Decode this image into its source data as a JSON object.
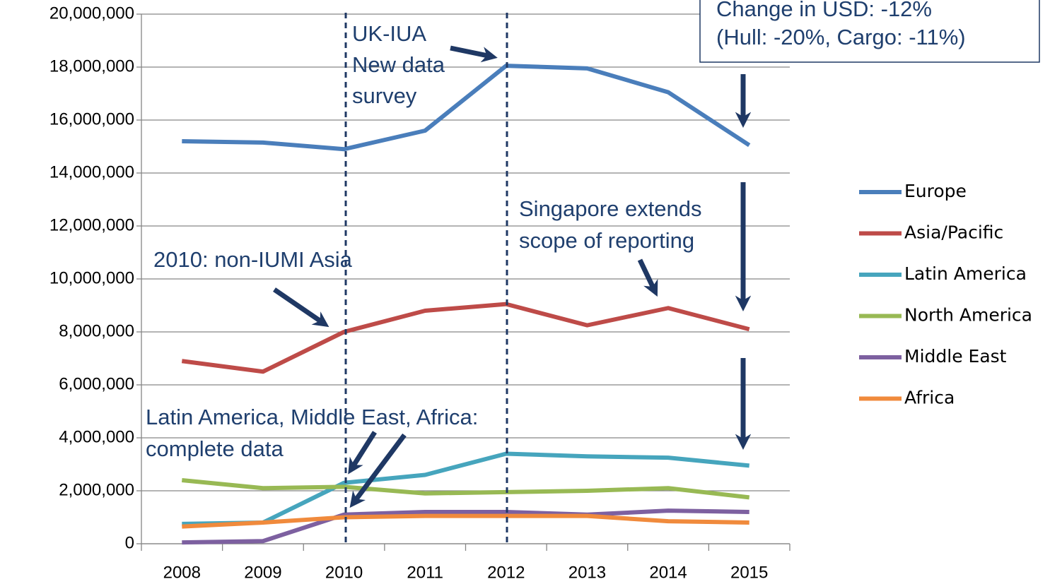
{
  "chart_data": {
    "type": "line",
    "categories": [
      "2008",
      "2009",
      "2010",
      "2011",
      "2012",
      "2013",
      "2014",
      "2015"
    ],
    "series": [
      {
        "name": "Europe",
        "color": "#4a7ebb",
        "values": [
          15200000,
          15150000,
          14900000,
          15600000,
          18050000,
          17950000,
          17050000,
          15050000
        ]
      },
      {
        "name": "Asia/Pacific",
        "color": "#be4b48",
        "values": [
          6900000,
          6500000,
          8000000,
          8800000,
          9050000,
          8250000,
          8900000,
          8100000
        ]
      },
      {
        "name": "Latin America",
        "color": "#46a5bd",
        "values": [
          750000,
          800000,
          2300000,
          2600000,
          3400000,
          3300000,
          3250000,
          2950000
        ]
      },
      {
        "name": "North America",
        "color": "#98b954",
        "values": [
          2400000,
          2100000,
          2150000,
          1900000,
          1950000,
          2000000,
          2100000,
          1750000
        ]
      },
      {
        "name": "Middle East",
        "color": "#7d60a0",
        "values": [
          50000,
          100000,
          1100000,
          1200000,
          1200000,
          1100000,
          1250000,
          1200000
        ]
      },
      {
        "name": "Africa",
        "color": "#f08a3c",
        "values": [
          650000,
          800000,
          1000000,
          1050000,
          1050000,
          1050000,
          850000,
          800000
        ]
      }
    ],
    "ylim": [
      0,
      20000000
    ],
    "yticks": [
      0,
      {
        "value": 2000000,
        "label": "2,000,000"
      },
      {
        "value": 4000000,
        "label": "4,000,000"
      },
      {
        "value": 6000000,
        "label": "6,000,000"
      },
      {
        "value": 8000000,
        "label": "8,000,000"
      },
      {
        "value": 10000000,
        "label": "10,000,000"
      },
      {
        "value": 12000000,
        "label": "12,000,000"
      },
      {
        "value": 14000000,
        "label": "14,000,000"
      },
      {
        "value": 16000000,
        "label": "16,000,000"
      },
      {
        "value": 18000000,
        "label": "18,000,000"
      },
      {
        "value": 20000000,
        "label": "20,000,000"
      }
    ],
    "grid": true,
    "legend": "right",
    "annotations": [
      {
        "lines": [
          "Change in USD: -12%",
          "(Hull: -20%, Cargo: -11%)"
        ]
      },
      {
        "lines": [
          "UK-IUA",
          "New data",
          "survey"
        ]
      },
      {
        "lines": [
          "Singapore extends",
          "scope of reporting"
        ]
      },
      {
        "lines": [
          "2010: non-IUMI Asia"
        ]
      },
      {
        "lines": [
          "Latin America, Middle East, Africa:",
          "complete data"
        ]
      }
    ]
  }
}
